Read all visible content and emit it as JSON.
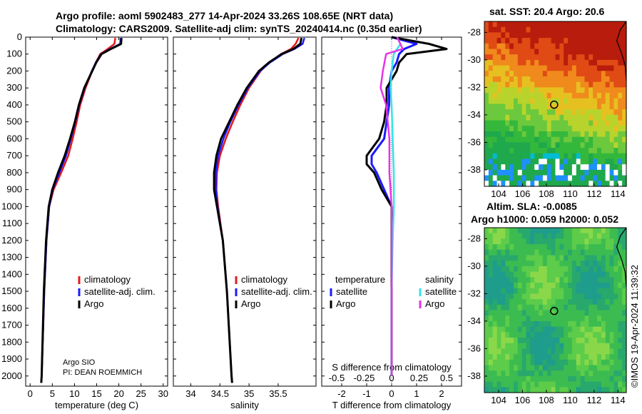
{
  "titles": {
    "line1": "Argo profile: aoml 5902483_277 14-Apr-2024 33.26S 108.65E (NRT data)",
    "line2": "Climatology: CARS2009. Satellite-adj clim: synTS_20240414.nc (0.35d earlier)",
    "sst": "sat. SST: 20.4 Argo: 20.6",
    "sla1": "Altim. SLA: -0.0085",
    "sla2": "Argo h1000: 0.059 h2000: 0.052"
  },
  "credit": {
    "org": "Argo SIO",
    "pi": "PI: DEAN ROEMMICH"
  },
  "watermark": "©IMOS 19-Apr-2024 11:39:32",
  "colors": {
    "climatology": "#e41a1c",
    "satellite": "#1a1aff",
    "argo": "#000000",
    "sat_sal": "#33e6e6",
    "argo_sal": "#e633e6"
  },
  "chart_data": [
    {
      "id": "temperature",
      "type": "line",
      "xlabel": "temperature (deg C)",
      "ylabel": "",
      "xlim": [
        -1,
        31
      ],
      "ylim": [
        2060,
        0
      ],
      "xticks": [
        0,
        5,
        10,
        15,
        20,
        25,
        30
      ],
      "yticks": [
        0,
        100,
        200,
        300,
        400,
        500,
        600,
        700,
        800,
        900,
        1000,
        1100,
        1200,
        1300,
        1400,
        1500,
        1600,
        1700,
        1800,
        1900,
        2000
      ],
      "legend": [
        "climatology",
        "satellite-adj. clim.",
        "Argo"
      ],
      "series": [
        {
          "name": "climatology",
          "depth": [
            5,
            40,
            70,
            100,
            150,
            200,
            300,
            400,
            500,
            600,
            700,
            800,
            900,
            1000,
            1200,
            1500,
            2000,
            2040
          ],
          "values": [
            19.2,
            19.0,
            17.5,
            15.8,
            14.8,
            14.0,
            12.5,
            11.3,
            10.5,
            9.6,
            8.6,
            7.0,
            5.3,
            4.3,
            3.7,
            3.2,
            2.6,
            2.5
          ]
        },
        {
          "name": "satellite-adj. clim.",
          "depth": [
            5,
            40,
            70,
            100,
            150,
            200,
            300,
            400,
            500,
            600,
            700,
            800,
            900,
            1000,
            1200,
            1500,
            2000,
            2040
          ],
          "values": [
            20.4,
            20.3,
            18.0,
            16.0,
            14.8,
            13.9,
            12.3,
            11.1,
            10.2,
            9.2,
            8.1,
            6.6,
            5.1,
            4.3,
            3.7,
            3.2,
            2.6,
            2.5
          ]
        },
        {
          "name": "Argo",
          "depth": [
            5,
            40,
            70,
            100,
            150,
            200,
            300,
            400,
            500,
            600,
            700,
            800,
            900,
            1000,
            1200,
            1500,
            2000,
            2040
          ],
          "values": [
            20.6,
            20.5,
            18.2,
            16.1,
            14.9,
            14.0,
            12.2,
            11.0,
            10.1,
            9.0,
            7.8,
            6.3,
            5.0,
            4.2,
            3.6,
            3.1,
            2.6,
            2.5
          ]
        }
      ]
    },
    {
      "id": "salinity",
      "type": "line",
      "xlabel": "salinity",
      "xlim": [
        33.7,
        36.15
      ],
      "ylim": [
        2060,
        0
      ],
      "xticks": [
        34,
        34.5,
        35,
        35.5
      ],
      "xticklabels": [
        "34",
        "34.5",
        "35",
        "35.5"
      ],
      "legend": [
        "climatology",
        "satellite-adj. clim.",
        "Argo"
      ],
      "series": [
        {
          "name": "climatology",
          "depth": [
            5,
            40,
            70,
            100,
            150,
            200,
            300,
            400,
            500,
            600,
            700,
            800,
            900,
            1000,
            1200,
            1500,
            2000,
            2040
          ],
          "values": [
            35.85,
            35.8,
            35.72,
            35.55,
            35.35,
            35.2,
            35.0,
            34.85,
            34.72,
            34.6,
            34.5,
            34.45,
            34.44,
            34.47,
            34.55,
            34.62,
            34.7,
            34.71
          ]
        },
        {
          "name": "satellite-adj. clim.",
          "depth": [
            5,
            40,
            70,
            100,
            150,
            200,
            300,
            400,
            500,
            600,
            700,
            800,
            900,
            1000,
            1200,
            1500,
            2000,
            2040
          ],
          "values": [
            35.95,
            35.92,
            35.78,
            35.58,
            35.36,
            35.19,
            34.98,
            34.82,
            34.68,
            34.56,
            34.47,
            34.43,
            34.43,
            34.46,
            34.55,
            34.62,
            34.7,
            34.71
          ]
        },
        {
          "name": "Argo",
          "depth": [
            5,
            40,
            70,
            100,
            150,
            200,
            300,
            400,
            500,
            600,
            700,
            800,
            900,
            1000,
            1200,
            1500,
            2000,
            2040
          ],
          "values": [
            35.9,
            35.88,
            35.76,
            35.56,
            35.34,
            35.17,
            34.96,
            34.8,
            34.66,
            34.52,
            34.44,
            34.4,
            34.4,
            34.45,
            34.55,
            34.62,
            34.7,
            34.71
          ]
        }
      ]
    },
    {
      "id": "difference",
      "type": "line",
      "xlabel": "T difference from climatology",
      "xlabel_top": "S difference from climatology",
      "xlim": [
        -2.8,
        2.8
      ],
      "ylim": [
        2060,
        0
      ],
      "xticks": [
        -2,
        -1,
        0,
        1,
        2
      ],
      "sticks": [
        "-0.5",
        "-0.25",
        "0",
        "0.25",
        "0.5"
      ],
      "legend_left_title": "temperature",
      "legend_right_title": "salinity",
      "legend_left": [
        "satellite",
        "Argo"
      ],
      "legend_right": [
        "satellite",
        "Argo"
      ],
      "series": [
        {
          "name": "T satellite",
          "depth": [
            0,
            40,
            70,
            100,
            150,
            200,
            300,
            400,
            500,
            600,
            700,
            750,
            800,
            900,
            1000,
            1200,
            1500,
            2000
          ],
          "values": [
            0.0,
            1.0,
            0.5,
            0.3,
            0.2,
            0.0,
            -0.1,
            -0.1,
            -0.2,
            -0.3,
            -0.8,
            -0.8,
            -0.6,
            -0.3,
            0.0,
            0.0,
            0.0,
            0.0
          ]
        },
        {
          "name": "T Argo",
          "depth": [
            0,
            40,
            70,
            100,
            150,
            200,
            300,
            400,
            500,
            600,
            700,
            750,
            800,
            900,
            1000,
            1200,
            1500,
            2000
          ],
          "values": [
            0.0,
            1.5,
            2.2,
            0.6,
            0.3,
            0.2,
            -0.2,
            -0.2,
            -0.3,
            -0.5,
            -1.0,
            -1.0,
            -0.7,
            -0.4,
            0.0,
            0.0,
            0.0,
            0.0
          ]
        },
        {
          "name": "S satellite",
          "depth": [
            0,
            40,
            70,
            100,
            200,
            300,
            400,
            600,
            800,
            1000,
            1200,
            1500,
            2000
          ],
          "values": [
            0.05,
            0.08,
            0.05,
            0.02,
            0.0,
            -0.01,
            0.0,
            0.01,
            0.02,
            0.02,
            0.01,
            0.0,
            0.0
          ]
        },
        {
          "name": "S Argo",
          "depth": [
            0,
            40,
            70,
            100,
            200,
            300,
            400,
            600,
            800,
            1000,
            1200,
            1500,
            2000
          ],
          "values": [
            0.05,
            0.08,
            0.1,
            -0.05,
            -0.08,
            -0.1,
            -0.05,
            -0.02,
            -0.02,
            0.0,
            0.0,
            0.0,
            0.0
          ]
        }
      ]
    },
    {
      "id": "sst_map",
      "type": "heatmap",
      "title": "sat. SST: 20.4 Argo: 20.6",
      "xlim": [
        102.8,
        114.7
      ],
      "ylim": [
        -39.2,
        -27.2
      ],
      "xticks": [
        104,
        106,
        108,
        110,
        112,
        114
      ],
      "yticks": [
        -28,
        -30,
        -32,
        -34,
        -36,
        -38
      ],
      "marker": {
        "lon": 108.65,
        "lat": -33.26
      }
    },
    {
      "id": "sla_map",
      "type": "heatmap",
      "title": "Altim. SLA: -0.0085",
      "xlim": [
        102.8,
        114.7
      ],
      "ylim": [
        -39.2,
        -27.2
      ],
      "xticks": [
        104,
        106,
        108,
        110,
        112,
        114
      ],
      "yticks": [
        -28,
        -30,
        -32,
        -34,
        -36,
        -38
      ],
      "marker": {
        "lon": 108.65,
        "lat": -33.26
      }
    }
  ]
}
